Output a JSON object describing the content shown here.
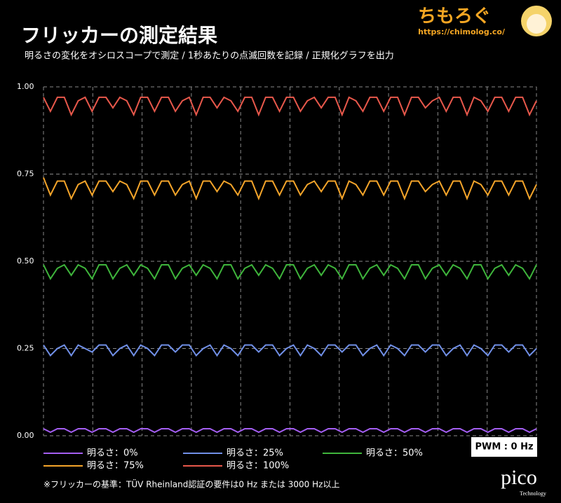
{
  "chart_data": {
    "type": "line",
    "title": "フリッカーの測定結果",
    "subtitle": "明るさの変化をオシロスコープで測定 / 1秒あたりの点滅回数を記録 / 正規化グラフを出力",
    "ylim": [
      0,
      1
    ],
    "yticks": [
      {
        "value": 0,
        "label": "0.00"
      },
      0.25,
      {
        "value": 0.5,
        "label": "0.50"
      },
      0.75,
      {
        "value": 1,
        "label": "1.00"
      }
    ],
    "grid": true,
    "series": [
      {
        "name": "明るさ：0%",
        "color": "#a45ef2",
        "values": [
          0.02,
          0.01,
          0.02,
          0.02,
          0.01,
          0.02,
          0.02,
          0.01,
          0.02,
          0.02,
          0.01,
          0.02,
          0.02,
          0.01,
          0.02,
          0.02,
          0.01,
          0.02,
          0.02,
          0.01,
          0.02,
          0.02,
          0.01,
          0.02,
          0.02,
          0.01,
          0.02,
          0.02,
          0.01,
          0.02,
          0.02,
          0.01,
          0.02,
          0.02,
          0.01,
          0.02,
          0.02,
          0.01,
          0.02,
          0.02,
          0.01,
          0.02,
          0.02,
          0.01,
          0.02,
          0.02,
          0.01,
          0.02,
          0.02,
          0.01,
          0.02,
          0.02,
          0.01,
          0.02,
          0.02,
          0.01,
          0.02,
          0.02,
          0.01,
          0.02,
          0.02,
          0.01,
          0.02,
          0.02,
          0.01,
          0.02,
          0.02,
          0.01,
          0.02,
          0.02,
          0.01,
          0.02
        ]
      },
      {
        "name": "明るさ：25%",
        "color": "#7190e8",
        "values": [
          0.26,
          0.23,
          0.25,
          0.26,
          0.23,
          0.26,
          0.25,
          0.24,
          0.26,
          0.26,
          0.23,
          0.25,
          0.26,
          0.23,
          0.26,
          0.25,
          0.23,
          0.26,
          0.26,
          0.24,
          0.26,
          0.26,
          0.23,
          0.25,
          0.26,
          0.23,
          0.26,
          0.25,
          0.23,
          0.26,
          0.26,
          0.24,
          0.26,
          0.26,
          0.23,
          0.25,
          0.26,
          0.23,
          0.26,
          0.25,
          0.23,
          0.26,
          0.26,
          0.24,
          0.26,
          0.26,
          0.23,
          0.25,
          0.26,
          0.23,
          0.26,
          0.25,
          0.23,
          0.26,
          0.26,
          0.24,
          0.26,
          0.26,
          0.23,
          0.25,
          0.26,
          0.23,
          0.26,
          0.25,
          0.23,
          0.26,
          0.26,
          0.24,
          0.26,
          0.26,
          0.23,
          0.25
        ]
      },
      {
        "name": "明るさ：50%",
        "color": "#3fb63c",
        "values": [
          0.49,
          0.45,
          0.48,
          0.49,
          0.46,
          0.49,
          0.48,
          0.45,
          0.49,
          0.49,
          0.45,
          0.48,
          0.49,
          0.46,
          0.49,
          0.48,
          0.45,
          0.49,
          0.49,
          0.45,
          0.48,
          0.49,
          0.46,
          0.49,
          0.48,
          0.45,
          0.49,
          0.49,
          0.45,
          0.48,
          0.49,
          0.46,
          0.49,
          0.48,
          0.45,
          0.49,
          0.49,
          0.45,
          0.48,
          0.49,
          0.46,
          0.49,
          0.48,
          0.45,
          0.49,
          0.49,
          0.45,
          0.48,
          0.49,
          0.46,
          0.49,
          0.48,
          0.45,
          0.49,
          0.49,
          0.45,
          0.48,
          0.49,
          0.46,
          0.49,
          0.48,
          0.45,
          0.49,
          0.49,
          0.45,
          0.48,
          0.49,
          0.46,
          0.49,
          0.48,
          0.45,
          0.49
        ]
      },
      {
        "name": "明るさ：75%",
        "color": "#f5a52a",
        "values": [
          0.74,
          0.69,
          0.73,
          0.73,
          0.68,
          0.72,
          0.73,
          0.69,
          0.73,
          0.73,
          0.7,
          0.73,
          0.72,
          0.68,
          0.73,
          0.73,
          0.69,
          0.73,
          0.73,
          0.69,
          0.72,
          0.73,
          0.68,
          0.73,
          0.73,
          0.7,
          0.73,
          0.72,
          0.69,
          0.73,
          0.73,
          0.68,
          0.73,
          0.73,
          0.69,
          0.73,
          0.73,
          0.69,
          0.72,
          0.73,
          0.7,
          0.73,
          0.73,
          0.68,
          0.73,
          0.72,
          0.69,
          0.73,
          0.73,
          0.69,
          0.73,
          0.73,
          0.68,
          0.73,
          0.73,
          0.7,
          0.72,
          0.73,
          0.69,
          0.73,
          0.73,
          0.68,
          0.73,
          0.72,
          0.69,
          0.73,
          0.73,
          0.69,
          0.73,
          0.73,
          0.68,
          0.72
        ]
      },
      {
        "name": "明るさ：100%",
        "color": "#e8584b",
        "values": [
          0.97,
          0.93,
          0.97,
          0.97,
          0.92,
          0.96,
          0.97,
          0.93,
          0.97,
          0.97,
          0.94,
          0.97,
          0.96,
          0.92,
          0.97,
          0.97,
          0.93,
          0.97,
          0.97,
          0.93,
          0.96,
          0.97,
          0.92,
          0.97,
          0.97,
          0.94,
          0.97,
          0.96,
          0.93,
          0.97,
          0.97,
          0.92,
          0.97,
          0.97,
          0.93,
          0.97,
          0.97,
          0.93,
          0.96,
          0.97,
          0.94,
          0.97,
          0.97,
          0.92,
          0.97,
          0.96,
          0.93,
          0.97,
          0.97,
          0.93,
          0.97,
          0.97,
          0.92,
          0.97,
          0.97,
          0.94,
          0.96,
          0.97,
          0.93,
          0.97,
          0.97,
          0.92,
          0.97,
          0.96,
          0.93,
          0.97,
          0.97,
          0.93,
          0.97,
          0.97,
          0.92,
          0.96
        ]
      }
    ],
    "annotation": "PWM : 0 Hz",
    "footnote": "※フリッカーの基準：TÜV Rheinland認証の要件は0 Hz または 3000 Hz以上",
    "logo": {
      "name": "ちもろぐ",
      "url": "https://chimolog.co/"
    },
    "brand": {
      "name": "pico",
      "tagline": "Technology"
    }
  }
}
